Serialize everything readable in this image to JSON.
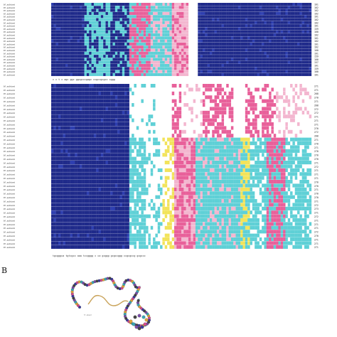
{
  "panel_b_label": "B",
  "block1": {
    "labels": [
      "H. sabiani",
      "H. sabiani",
      "H. sabiani",
      "H. sabiani",
      "H. sabiani",
      "H. sabiani",
      "H. sabiani",
      "H. sabiani",
      "H. sabiani",
      "H. sabiani",
      "H. sabiani",
      "H. sabiani",
      "H. sabiani",
      "H. sabiani",
      "H. sabiani",
      "H. sabiani",
      "H. sabiani",
      "H. sabiani",
      "H. sabiani",
      "H. sabiani",
      "H. sabiani",
      "H. sabiani",
      "H. sabiani",
      "H. sabiani"
    ],
    "numbers": [
      "161",
      "162",
      "162",
      "162",
      "161",
      "162",
      "162",
      "161",
      "159",
      "160",
      "162",
      "161",
      "162",
      "161",
      "162",
      "160",
      "161",
      "159",
      "160",
      "157",
      "161",
      "159",
      "160",
      "161"
    ]
  },
  "block2": {
    "labels": [
      "H. sabiani",
      "H. sabiani",
      "H. sabiani",
      "H. sabiani",
      "H. sabiani",
      "H. sabiani",
      "H. sabiani",
      "H. sabiani",
      "H. sabiani",
      "H. sabiani",
      "H. sabiani",
      "H. sabiani",
      "H. sabiani",
      "H. sabiani",
      "H. sabiani",
      "H. sabiani",
      "H. sabiani",
      "H. sabiani",
      "H. sabiani",
      "H. sabiani",
      "H. sabiani",
      "H. sabiani",
      "H. sabiani",
      "H. sabiani",
      "H. sabiani",
      "H. sabiani",
      "H. sabiani",
      "H. sabiani",
      "H. sabiani",
      "H. sabiani",
      "H. sabiani",
      "H. sabiani",
      "H. sabiani",
      "H. sabiani",
      "H. sabiani",
      "H. sabiani",
      "H. sabiani",
      "H. sabiani",
      "H. sabiani",
      "H. sabiani",
      "H. sabiani",
      "H. sabiani",
      "H. sabiani"
    ],
    "numbers": [
      "271",
      "271",
      "268",
      "270",
      "271",
      "268",
      "272",
      "272",
      "271",
      "271",
      "271",
      "270",
      "272",
      "268",
      "271",
      "270",
      "271",
      "270",
      "270",
      "270",
      "271",
      "272",
      "271",
      "271",
      "271",
      "270",
      "270",
      "271",
      "270",
      "270",
      "271",
      "272",
      "273",
      "271",
      "272",
      "271",
      "271",
      "271",
      "272",
      "270",
      "271",
      "271",
      "271"
    ]
  },
  "consensus": {
    "block1": "c  c        t      c           agc ggc   ggcgcccgagc  ccgccgcgcc  cggg",
    "block2": "tgcgggca tgtcgcc  aaa  tccgggg c   ca gcggg  gcgccggg ccgcgccg  gcgccc"
  },
  "colors": {
    "dark_blue": "#1f2a8a",
    "mid_blue": "#2e3fb0",
    "cyan": "#5fd0d6",
    "pink": "#e8609a",
    "light_pink": "#f3b6cf",
    "yellow": "#f2e35a",
    "white": "#ffffff"
  },
  "structure": {
    "stem_label": "5'-stem"
  }
}
